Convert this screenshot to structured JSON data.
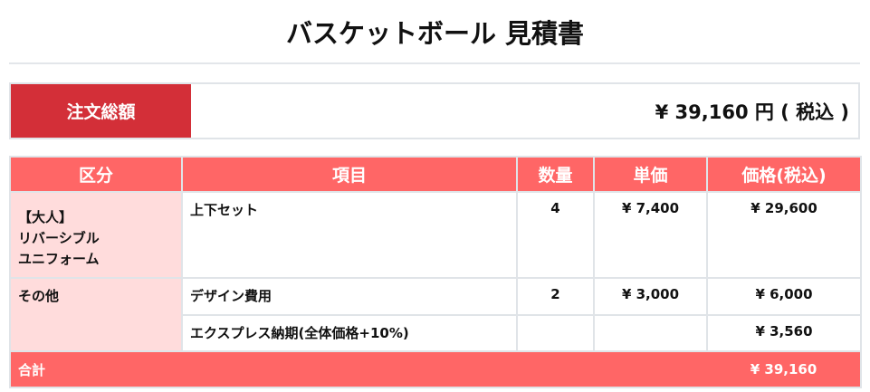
{
  "title": "バスケットボール 見積書",
  "order_total": {
    "label": "注文総額",
    "value": "¥ 39,160 円 ( 税込 )"
  },
  "table": {
    "headers": [
      "区分",
      "項目",
      "数量",
      "単価",
      "価格(税込)"
    ],
    "groups": [
      {
        "category": [
          "【大人】",
          "リバーシブル",
          "ユニフォーム"
        ],
        "rows": [
          {
            "item": "上下セット",
            "qty": "4",
            "unit": "¥ 7,400",
            "price": "¥ 29,600"
          }
        ]
      },
      {
        "category": [
          "その他"
        ],
        "rows": [
          {
            "item": "デザイン費用",
            "qty": "2",
            "unit": "¥ 3,000",
            "price": "¥ 6,000"
          },
          {
            "item": "エクスプレス納期(全体価格+10%)",
            "qty": "",
            "unit": "",
            "price": "¥ 3,560"
          }
        ]
      }
    ],
    "total": {
      "label": "合計",
      "value": "¥ 39,160"
    }
  },
  "colors": {
    "accent_dark": "#d32f38",
    "header": "#ff6666",
    "category_bg": "#ffdcdc"
  }
}
